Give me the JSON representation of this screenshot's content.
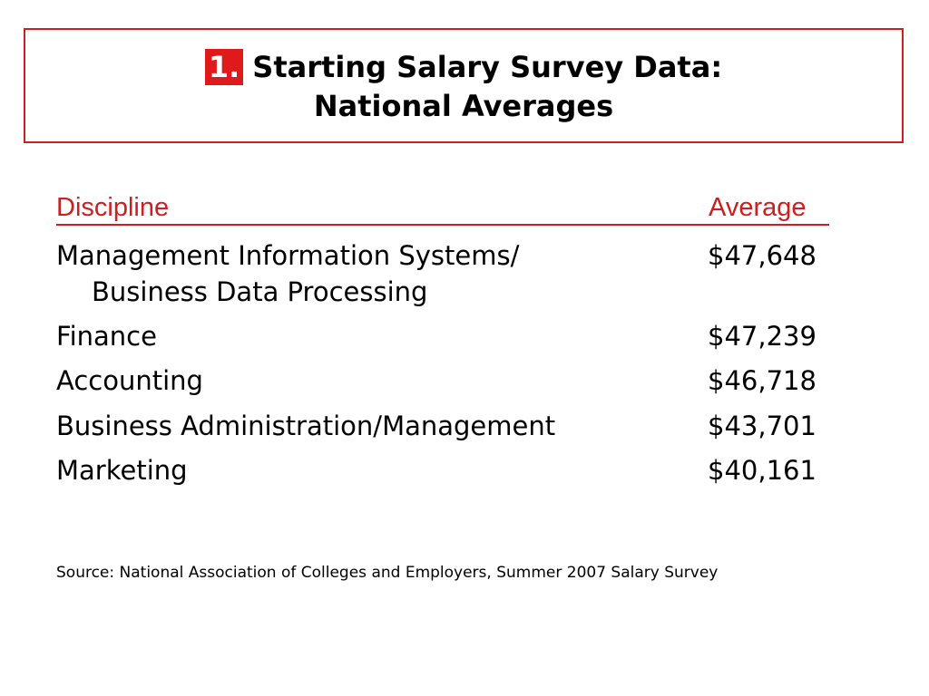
{
  "slide": {
    "title_number": "1.",
    "title_line1": "Starting Salary Survey Data:",
    "title_line2": "National Averages",
    "colors": {
      "accent": "#cc1f1f",
      "badge": "#e01a1a",
      "text": "#000000",
      "background": "#ffffff"
    }
  },
  "table": {
    "headers": {
      "discipline": "Discipline",
      "average": "Average"
    },
    "rows": [
      {
        "discipline": "Management Information Systems/",
        "discipline_cont": "Business Data Processing",
        "average": "$47,648"
      },
      {
        "discipline": "Finance",
        "average": "$47,239"
      },
      {
        "discipline": "Accounting",
        "average": "$46,718"
      },
      {
        "discipline": "Business Administration/Management",
        "average": "$43,701"
      },
      {
        "discipline": "Marketing",
        "average": "$40,161"
      }
    ]
  },
  "source": "Source: National Association of Colleges and Employers, Summer 2007 Salary Survey"
}
